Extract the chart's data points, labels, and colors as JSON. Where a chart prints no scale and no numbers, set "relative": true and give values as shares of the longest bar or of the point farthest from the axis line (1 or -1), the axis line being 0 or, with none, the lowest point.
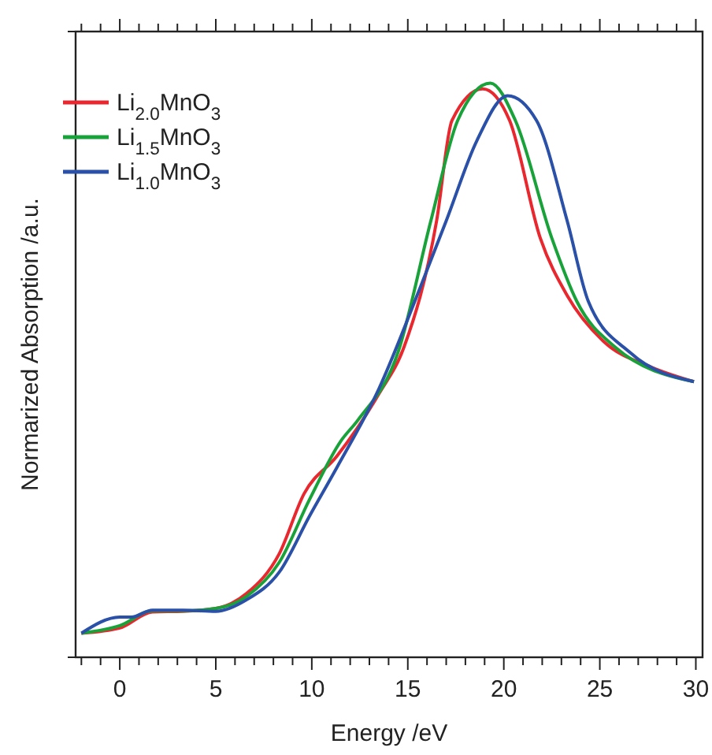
{
  "chart_data": {
    "type": "line",
    "relative": true,
    "xlabel": "Energy /eV",
    "ylabel": "Normarized Absorption /a.u.",
    "xlim": [
      -2.3,
      30.35
    ],
    "xticks": [
      {
        "value": -2,
        "label": null
      },
      {
        "value": -1,
        "label": null
      },
      0,
      {
        "value": 1,
        "label": null
      },
      {
        "value": 2,
        "label": null
      },
      {
        "value": 3,
        "label": null
      },
      {
        "value": 4,
        "label": null
      },
      5,
      {
        "value": 6,
        "label": null
      },
      {
        "value": 7,
        "label": null
      },
      {
        "value": 8,
        "label": null
      },
      {
        "value": 9,
        "label": null
      },
      10,
      {
        "value": 11,
        "label": null
      },
      {
        "value": 12,
        "label": null
      },
      {
        "value": 13,
        "label": null
      },
      {
        "value": 14,
        "label": null
      },
      15,
      {
        "value": 16,
        "label": null
      },
      {
        "value": 17,
        "label": null
      },
      {
        "value": 18,
        "label": null
      },
      {
        "value": 19,
        "label": null
      },
      20,
      {
        "value": 21,
        "label": null
      },
      {
        "value": 22,
        "label": null
      },
      {
        "value": 23,
        "label": null
      },
      {
        "value": 24,
        "label": null
      },
      25,
      {
        "value": 26,
        "label": null
      },
      {
        "value": 27,
        "label": null
      },
      {
        "value": 28,
        "label": null
      },
      {
        "value": 29,
        "label": null
      },
      30
    ],
    "legend": "top left",
    "grid": false,
    "line_style": "solid",
    "series": [
      {
        "name": "Li$_{2.0}$MnO$_{3}$",
        "color": "#e8282e",
        "x": [
          -2,
          0,
          1.7,
          3.3,
          5,
          6.6,
          8.3,
          9.6,
          11.3,
          13.5,
          14.8,
          16.5,
          17.3,
          18.9,
          20.3,
          21.9,
          23.3,
          25.2,
          27.7,
          29.9
        ],
        "values": [
          0.042,
          0.051,
          0.079,
          0.08,
          0.085,
          0.111,
          0.18,
          0.285,
          0.35,
          0.459,
          0.54,
          0.76,
          0.935,
          0.99,
          0.935,
          0.73,
          0.63,
          0.55,
          0.505,
          0.48
        ]
      },
      {
        "name": "Li$_{1.5}$MnO$_{3}$",
        "color": "#1aa23a",
        "x": [
          -2,
          0,
          1.7,
          3.3,
          5,
          6.6,
          8.3,
          9.9,
          11.5,
          12.4,
          14.5,
          16.2,
          17.6,
          19.3,
          20.6,
          22.5,
          23.8,
          25.8,
          29.9
        ],
        "values": [
          0.042,
          0.055,
          0.081,
          0.081,
          0.085,
          0.106,
          0.165,
          0.276,
          0.376,
          0.413,
          0.532,
          0.76,
          0.935,
          1,
          0.935,
          0.73,
          0.62,
          0.54,
          0.48
        ]
      },
      {
        "name": "Li$_{1.0}$MnO$_{3}$",
        "color": "#2a50a8",
        "x": [
          -2,
          0,
          0.6,
          1.7,
          3.3,
          5,
          6.6,
          8.3,
          9.9,
          11.3,
          13.5,
          15.6,
          17,
          18.6,
          20.2,
          21.7,
          23.3,
          24.4,
          26.6,
          29.9
        ],
        "values": [
          0.042,
          0.07,
          0.07,
          0.082,
          0.082,
          0.08,
          0.1,
          0.148,
          0.247,
          0.33,
          0.468,
          0.64,
          0.76,
          0.9,
          0.978,
          0.935,
          0.76,
          0.62,
          0.53,
          0.48
        ]
      }
    ]
  }
}
